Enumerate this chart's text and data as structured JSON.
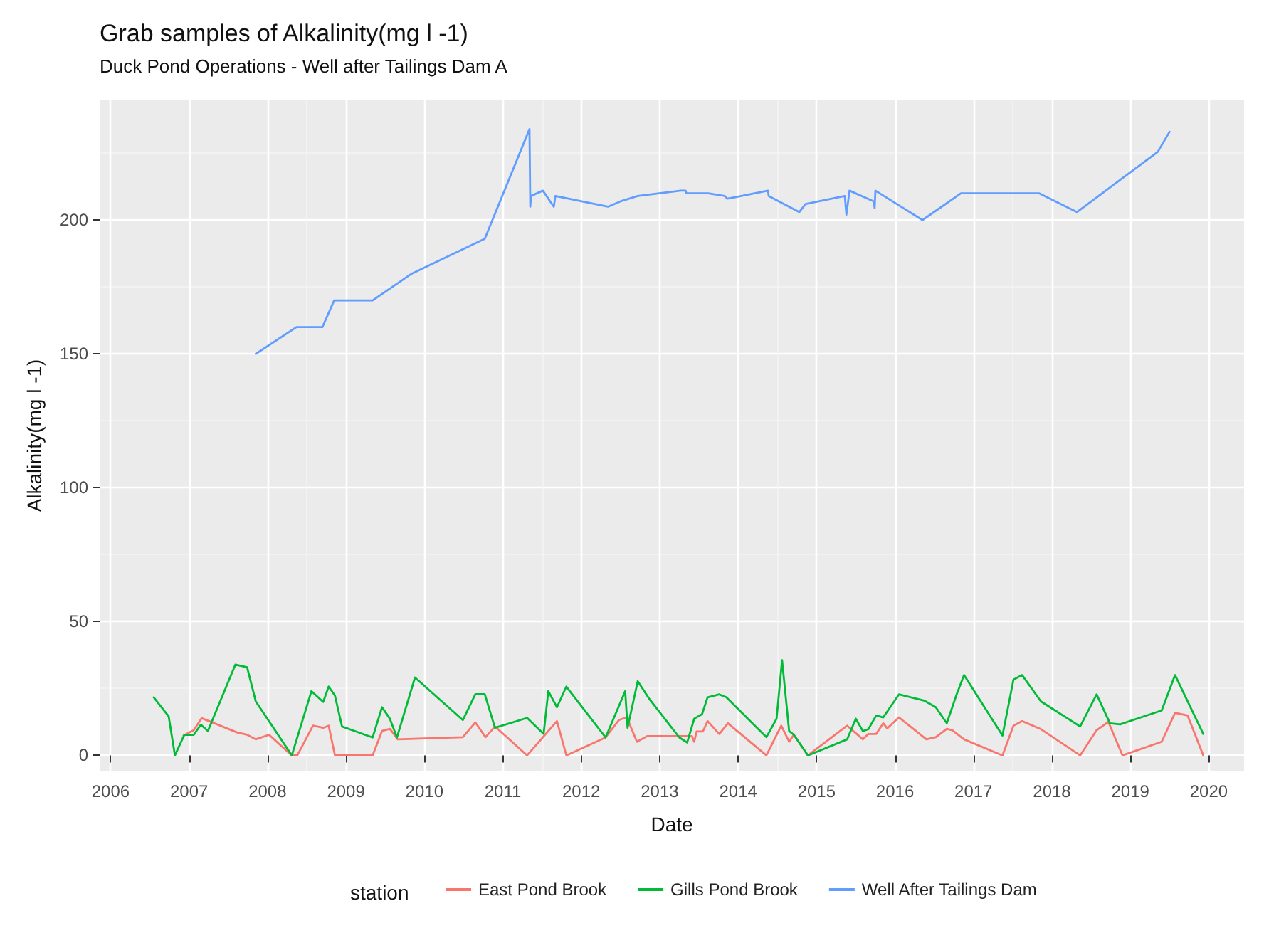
{
  "chart_data": {
    "type": "line",
    "title": "Grab samples of Alkalinity(mg l -1)",
    "subtitle": "Duck Pond Operations - Well after Tailings Dam A",
    "xlabel": "Date",
    "ylabel": "Alkalinity(mg l -1)",
    "legend_title": "station",
    "xlim": [
      2005.86,
      2020.45
    ],
    "xticks": [
      2006,
      2007,
      2008,
      2009,
      2010,
      2011,
      2012,
      2013,
      2014,
      2015,
      2016,
      2017,
      2018,
      2019,
      2020
    ],
    "ylim": [
      -6,
      245
    ],
    "yticks": [
      0,
      50,
      100,
      150,
      200
    ],
    "grid": true,
    "legend": "bottom",
    "series": [
      {
        "name": "East Pond Brook",
        "color": "#f8766d",
        "x": [
          2006.93,
          2007.06,
          2007.16,
          2007.28,
          2007.61,
          2007.74,
          2007.85,
          2008.02,
          2008.31,
          2008.38,
          2008.58,
          2008.71,
          2008.78,
          2008.86,
          2009.34,
          2009.46,
          2009.56,
          2009.66,
          2010.49,
          2010.65,
          2010.78,
          2010.9,
          2011.31,
          2011.69,
          2011.81,
          2012.31,
          2012.48,
          2012.58,
          2012.71,
          2012.84,
          2013.25,
          2013.41,
          2013.44,
          2013.47,
          2013.55,
          2013.61,
          2013.76,
          2013.87,
          2014.36,
          2014.55,
          2014.65,
          2014.71,
          2014.89,
          2015.39,
          2015.59,
          2015.66,
          2015.76,
          2015.85,
          2015.9,
          2016.05,
          2016.4,
          2016.52,
          2016.66,
          2016.73,
          2016.88,
          2017.37,
          2017.51,
          2017.62,
          2017.86,
          2018.36,
          2018.57,
          2018.72,
          2018.9,
          2019.4,
          2019.57,
          2019.73,
          2019.93
        ],
        "values": [
          7.4,
          9.4,
          13.9,
          12.5,
          8.6,
          7.7,
          6,
          7.7,
          0,
          0,
          11.1,
          10.3,
          11.1,
          0,
          0,
          9.1,
          9.9,
          6,
          6.8,
          12.3,
          6.8,
          10.8,
          0,
          12.8,
          0,
          6.7,
          13.2,
          14.2,
          5.1,
          7.2,
          7.2,
          7.2,
          5.1,
          8.9,
          8.9,
          12.8,
          8,
          12,
          0,
          11.1,
          5.1,
          7.7,
          0,
          11.1,
          6,
          8,
          8,
          12,
          10.1,
          14.2,
          6,
          6.8,
          9.9,
          9.4,
          6,
          0,
          11.1,
          12.8,
          9.8,
          0,
          9.4,
          12.5,
          0,
          5.1,
          15.9,
          14.9,
          0
        ]
      },
      {
        "name": "Gills Pond Brook",
        "color": "#00ba38",
        "x": [
          2006.55,
          2006.74,
          2006.82,
          2006.94,
          2007.06,
          2007.15,
          2007.24,
          2007.59,
          2007.74,
          2007.85,
          2008.31,
          2008.56,
          2008.71,
          2008.78,
          2008.86,
          2008.95,
          2009.34,
          2009.46,
          2009.56,
          2009.65,
          2009.88,
          2010.49,
          2010.65,
          2010.77,
          2010.9,
          2011.31,
          2011.52,
          2011.58,
          2011.69,
          2011.81,
          2012.31,
          2012.56,
          2012.59,
          2012.72,
          2012.87,
          2013.25,
          2013.35,
          2013.44,
          2013.54,
          2013.61,
          2013.76,
          2013.85,
          2014.36,
          2014.49,
          2014.56,
          2014.65,
          2014.71,
          2014.89,
          2015.39,
          2015.5,
          2015.59,
          2015.66,
          2015.76,
          2015.85,
          2016.05,
          2016.37,
          2016.52,
          2016.66,
          2016.78,
          2016.88,
          2017.37,
          2017.51,
          2017.62,
          2017.86,
          2018.36,
          2018.57,
          2018.74,
          2018.87,
          2019.4,
          2019.57,
          2019.93
        ],
        "values": [
          21.7,
          14.6,
          0,
          7.7,
          7.7,
          11.5,
          9.1,
          33.9,
          32.9,
          20.2,
          0,
          24,
          20,
          25.7,
          22.3,
          10.8,
          6.7,
          18,
          13.7,
          6.7,
          29.1,
          13.2,
          22.9,
          22.9,
          10.3,
          14,
          8,
          24,
          18,
          25.7,
          6.7,
          24,
          10.3,
          27.7,
          21,
          6.7,
          4.8,
          13.7,
          15.4,
          21.7,
          22.8,
          21.7,
          6.8,
          13.7,
          35.6,
          9.1,
          7.7,
          0,
          6,
          13.7,
          9.1,
          9.8,
          14.9,
          14.2,
          22.8,
          20.5,
          18,
          12,
          22.3,
          30,
          7.4,
          28.3,
          30,
          20.2,
          10.8,
          22.8,
          12,
          11.6,
          16.8,
          30,
          8
        ]
      },
      {
        "name": "Well After Tailings Dam",
        "color": "#619cff",
        "x": [
          2007.85,
          2008.37,
          2008.7,
          2008.85,
          2009.34,
          2009.84,
          2010.77,
          2011.34,
          2011.35,
          2011.36,
          2011.51,
          2011.65,
          2011.67,
          2012.34,
          2012.5,
          2012.72,
          2013.27,
          2013.33,
          2013.34,
          2013.62,
          2013.83,
          2013.86,
          2013.95,
          2014.38,
          2014.39,
          2014.78,
          2014.86,
          2015.36,
          2015.38,
          2015.42,
          2015.73,
          2015.74,
          2015.75,
          2016.35,
          2016.84,
          2017.84,
          2018.32,
          2019.35,
          2019.5
        ],
        "values": [
          150,
          160,
          160,
          170,
          170,
          180,
          193,
          234,
          205,
          209,
          211,
          205,
          209,
          205,
          207,
          209,
          211,
          211,
          210,
          210,
          209,
          208,
          208.5,
          211,
          209,
          203,
          206,
          209,
          202,
          211,
          207,
          204.5,
          211,
          200,
          210,
          210,
          203,
          225.5,
          233
        ]
      }
    ]
  }
}
